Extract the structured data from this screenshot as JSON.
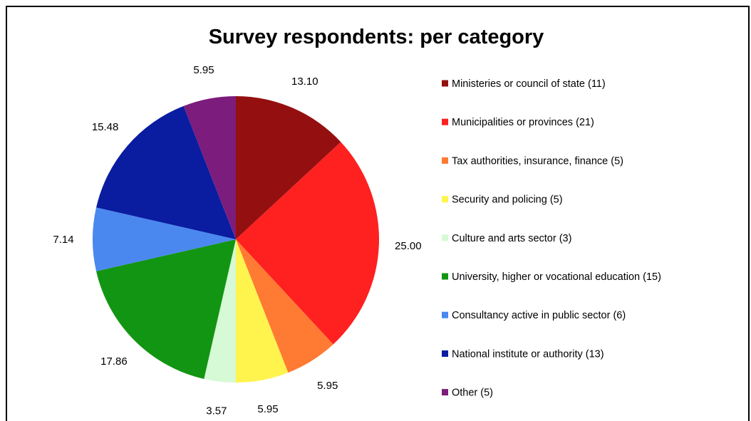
{
  "chart_data": {
    "type": "pie",
    "title": "Survey respondents: per category",
    "legend_position": "right",
    "slices": [
      {
        "label": "Ministeries or council of state (11)",
        "value": 13.1,
        "value_label": "13.10",
        "color": "#941010"
      },
      {
        "label": "Municipalities or provinces (21)",
        "value": 25.0,
        "value_label": "25.00",
        "color": "#FF2020"
      },
      {
        "label": "Tax authorities, insurance, finance (5)",
        "value": 5.95,
        "value_label": "5.95",
        "color": "#FF7A33"
      },
      {
        "label": "Security and policing (5)",
        "value": 5.95,
        "value_label": "5.95",
        "color": "#FFF34D"
      },
      {
        "label": "Culture and arts sector (3)",
        "value": 3.57,
        "value_label": "3.57",
        "color": "#D6F9D6"
      },
      {
        "label": "University, higher or vocational education (15)",
        "value": 17.86,
        "value_label": "17.86",
        "color": "#129512"
      },
      {
        "label": "Consultancy active in public sector (6)",
        "value": 7.14,
        "value_label": "7.14",
        "color": "#4A88F0"
      },
      {
        "label": "National institute or authority (13)",
        "value": 15.48,
        "value_label": "15.48",
        "color": "#0A1CA0"
      },
      {
        "label": "Other (5)",
        "value": 5.95,
        "value_label": "5.95",
        "color": "#7C1C7C"
      }
    ]
  }
}
